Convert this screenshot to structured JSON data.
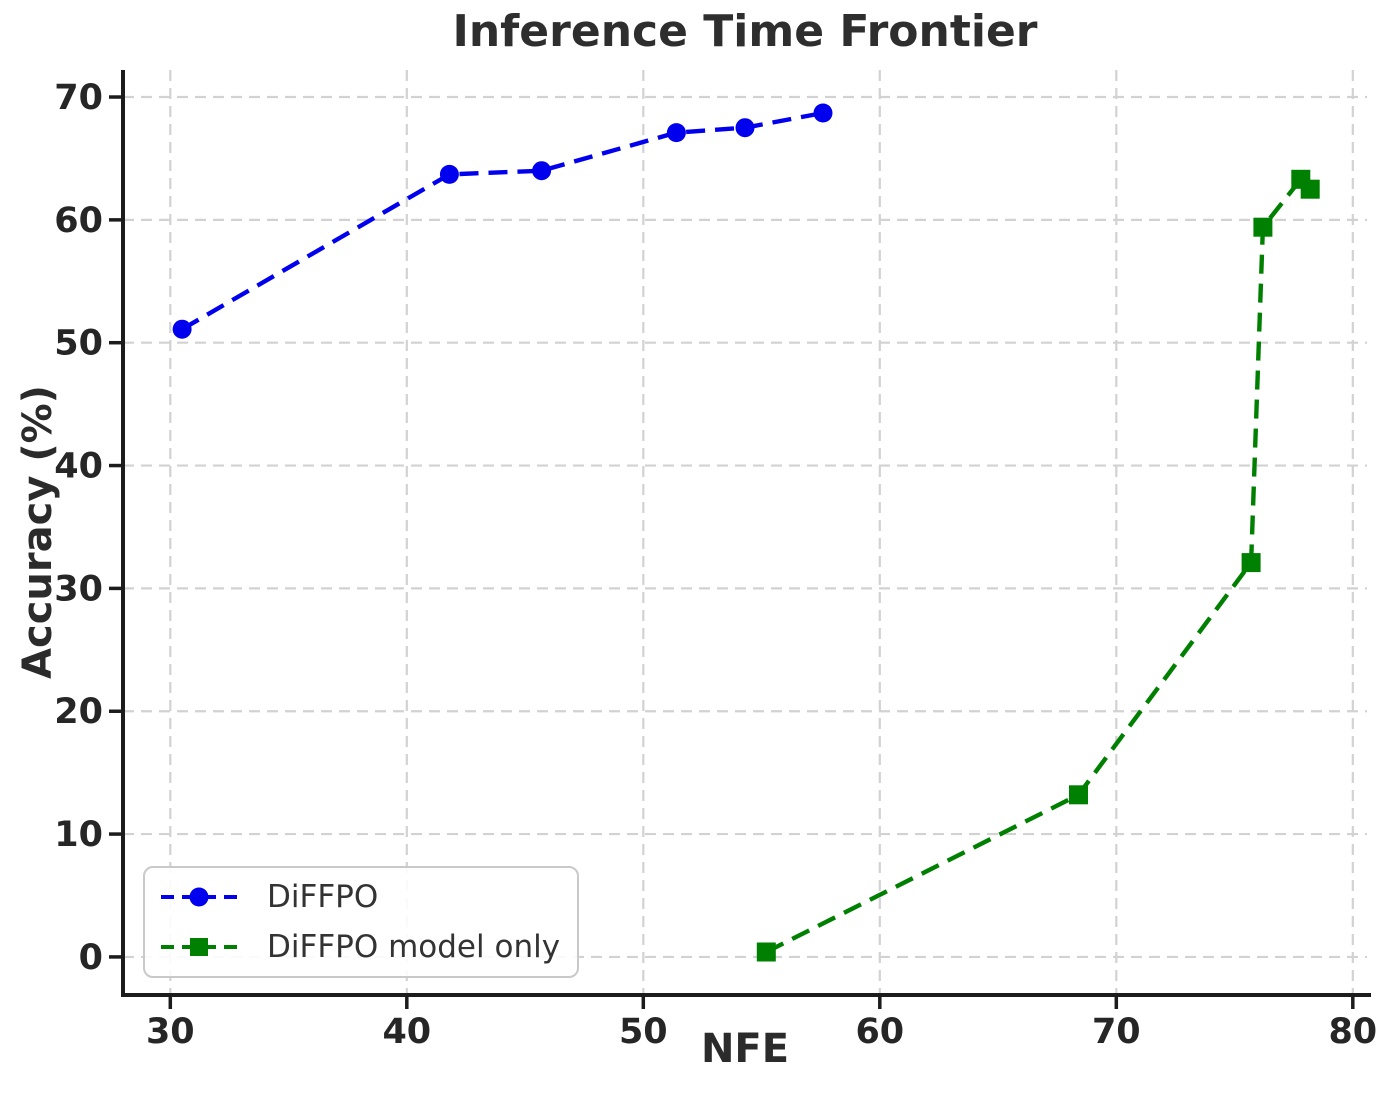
{
  "figure": {
    "background": "#ffffff"
  },
  "chart_data": {
    "type": "line",
    "title": "Inference Time Frontier",
    "xlabel": "NFE",
    "ylabel": "Accuracy (%)",
    "xlim": [
      28,
      80.6
    ],
    "ylim": [
      -3.1,
      72.2
    ],
    "xticks": [
      30,
      40,
      50,
      60,
      70,
      80
    ],
    "yticks": [
      0,
      10,
      20,
      30,
      40,
      50,
      60,
      70
    ],
    "grid": true,
    "legend_position": "lower-left",
    "series": [
      {
        "name": "DiFFPO",
        "color": "#0000ee",
        "marker": "circle",
        "linestyle": "dashed",
        "points": [
          [
            30.5,
            51.1
          ],
          [
            41.8,
            63.7
          ],
          [
            45.7,
            64.0
          ],
          [
            51.4,
            67.1
          ],
          [
            54.3,
            67.5
          ],
          [
            57.6,
            68.7
          ]
        ]
      },
      {
        "name": "DiFFPO model only",
        "color": "#008000",
        "marker": "square",
        "linestyle": "dashed",
        "points": [
          [
            55.2,
            0.4
          ],
          [
            68.4,
            13.2
          ],
          [
            75.7,
            32.1
          ],
          [
            76.2,
            59.4
          ],
          [
            77.8,
            63.3
          ],
          [
            78.2,
            62.5
          ]
        ]
      }
    ]
  },
  "styles": {
    "title_color": "#2e2e2e",
    "text_color": "#2b2b2b",
    "tick_label_color": "#262626",
    "grid_color": "#d2d2d2",
    "spine_color": "#1c1c1c",
    "legend_text_color": "#333333",
    "legend_border_color": "#c9c9c9"
  }
}
